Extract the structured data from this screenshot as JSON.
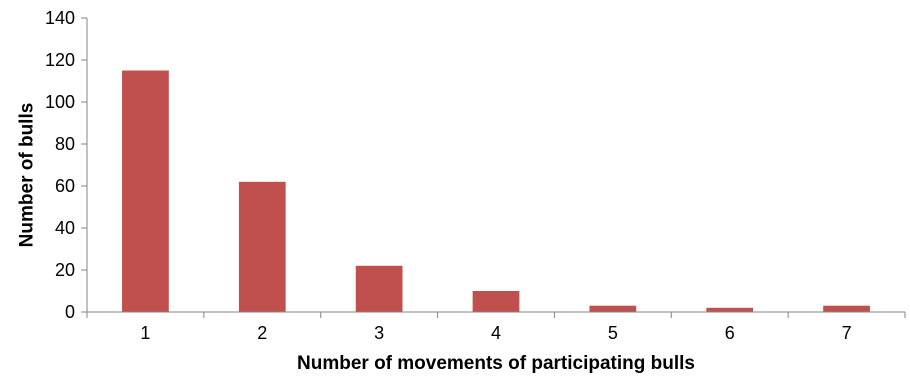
{
  "chart_data": {
    "type": "bar",
    "title": "",
    "xlabel": "Number of movements of participating bulls",
    "ylabel": "Number of bulls",
    "categories": [
      "1",
      "2",
      "3",
      "4",
      "5",
      "6",
      "7"
    ],
    "values": [
      115,
      62,
      22,
      10,
      3,
      2,
      3
    ],
    "ylim": [
      0,
      140
    ],
    "yticks": [
      0,
      20,
      40,
      60,
      80,
      100,
      120,
      140
    ],
    "grid": false,
    "legend": "none",
    "bar_color": "#c0504d",
    "axis_color": "#868686"
  }
}
